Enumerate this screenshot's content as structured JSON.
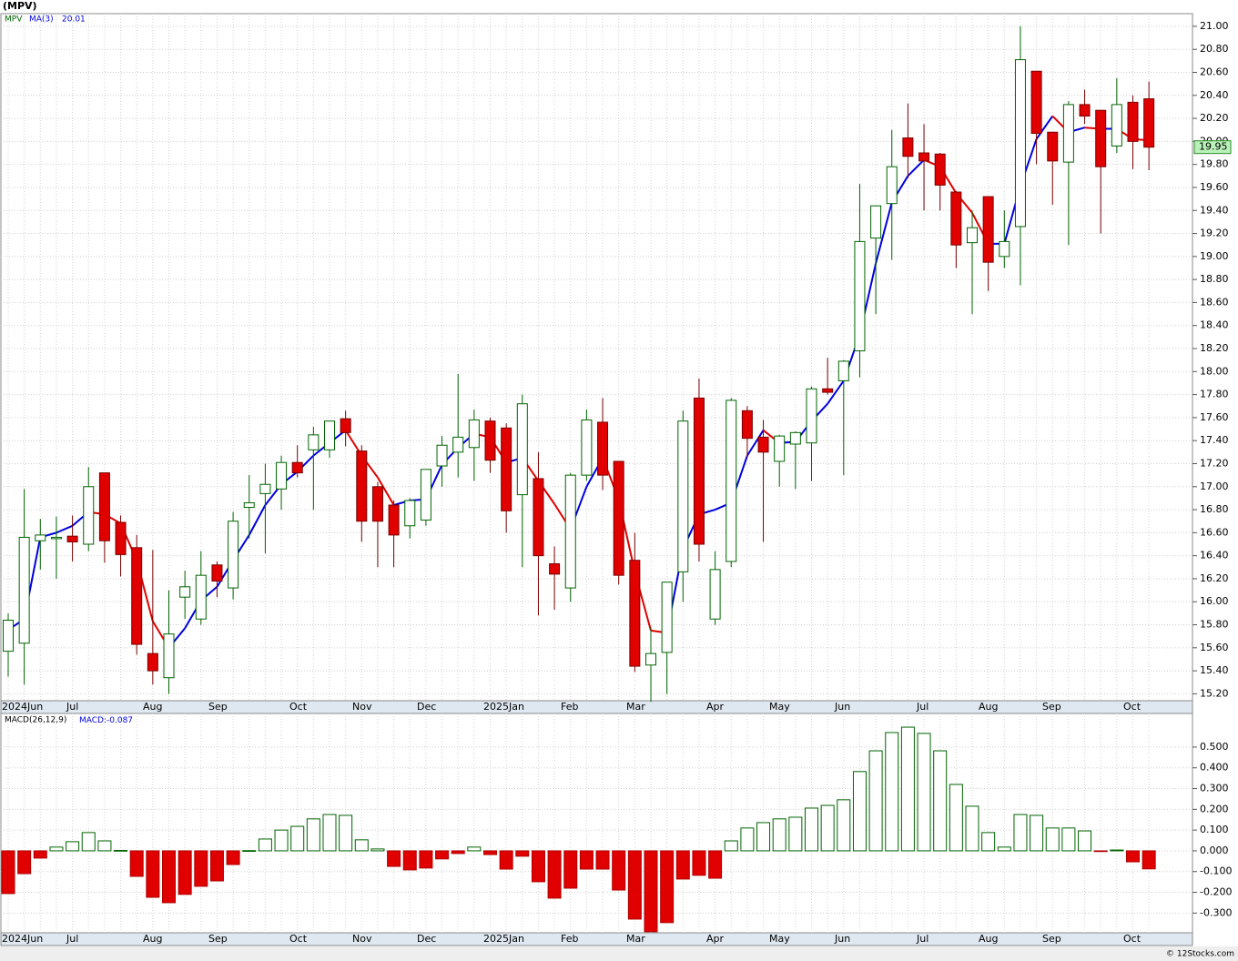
{
  "title": "(MPV)",
  "footer": "© 12Stocks.com",
  "chart_data": [
    {
      "type": "candlestick",
      "symbol": "MPV",
      "color_up": "#006400",
      "color_down": "#e00000",
      "open": [
        15.57,
        15.64,
        16.53,
        16.55,
        16.57,
        16.5,
        17.12,
        16.69,
        16.47,
        15.55,
        15.34,
        16.04,
        15.85,
        16.32,
        16.12,
        16.82,
        16.94,
        16.98,
        17.21,
        17.32,
        17.32,
        17.59,
        17.31,
        17.0,
        16.84,
        16.66,
        16.71,
        17.18,
        17.3,
        17.34,
        17.57,
        17.51,
        16.93,
        17.07,
        16.33,
        16.12,
        17.1,
        17.56,
        17.22,
        16.36,
        15.45,
        15.56,
        16.26,
        17.77,
        15.85,
        16.35,
        17.66,
        17.43,
        17.22,
        17.37,
        17.38,
        17.85,
        17.92,
        18.18,
        19.16,
        19.46,
        20.03,
        19.9,
        19.89,
        19.56,
        19.12,
        19.52,
        19.0,
        19.26,
        20.61,
        20.08,
        19.82,
        20.32,
        20.27,
        19.96,
        20.34,
        20.37
      ],
      "high": [
        15.9,
        16.98,
        16.72,
        16.74,
        16.75,
        17.17,
        17.12,
        16.75,
        16.58,
        16.45,
        16.1,
        16.27,
        16.44,
        16.35,
        16.78,
        17.1,
        17.2,
        17.27,
        17.36,
        17.52,
        17.57,
        17.66,
        17.36,
        17.04,
        16.88,
        16.9,
        17.15,
        17.44,
        17.98,
        17.67,
        17.6,
        17.55,
        17.8,
        17.3,
        16.48,
        17.12,
        17.67,
        17.77,
        17.22,
        16.6,
        15.78,
        16.17,
        17.66,
        17.94,
        16.44,
        17.77,
        17.7,
        17.58,
        17.45,
        17.48,
        17.87,
        18.12,
        18.1,
        19.63,
        19.44,
        20.1,
        20.33,
        20.15,
        19.9,
        19.57,
        19.4,
        19.52,
        19.4,
        21.0,
        20.61,
        20.08,
        20.35,
        20.45,
        20.27,
        20.55,
        20.4,
        20.52
      ],
      "low": [
        15.35,
        15.28,
        16.28,
        16.2,
        16.35,
        16.44,
        16.34,
        16.22,
        15.54,
        15.28,
        15.2,
        15.85,
        15.8,
        16.04,
        16.02,
        16.55,
        16.42,
        16.8,
        17.08,
        16.8,
        17.25,
        17.35,
        16.52,
        16.3,
        16.3,
        16.55,
        16.66,
        17.0,
        17.08,
        17.05,
        17.12,
        16.6,
        16.3,
        15.88,
        15.93,
        16.0,
        17.05,
        16.97,
        16.15,
        15.39,
        15.13,
        15.2,
        16.0,
        16.35,
        15.8,
        16.3,
        17.25,
        16.52,
        17.0,
        16.98,
        17.05,
        17.8,
        17.1,
        17.95,
        18.5,
        18.97,
        19.68,
        19.4,
        19.4,
        18.9,
        18.5,
        18.7,
        18.9,
        18.75,
        19.8,
        19.45,
        19.1,
        20.15,
        19.2,
        19.9,
        19.76,
        19.75
      ],
      "close": [
        15.84,
        16.56,
        16.58,
        16.56,
        16.52,
        17.0,
        16.53,
        16.41,
        15.63,
        15.4,
        15.72,
        16.13,
        16.23,
        16.18,
        16.7,
        16.86,
        17.02,
        17.21,
        17.12,
        17.45,
        17.57,
        17.47,
        16.7,
        16.7,
        16.58,
        16.88,
        17.15,
        17.36,
        17.43,
        17.58,
        17.23,
        16.79,
        17.72,
        16.4,
        16.24,
        17.1,
        17.58,
        17.1,
        16.23,
        15.44,
        15.55,
        16.17,
        17.57,
        16.5,
        16.28,
        17.75,
        17.42,
        17.3,
        17.44,
        17.47,
        17.85,
        17.82,
        18.09,
        19.13,
        19.44,
        19.78,
        19.87,
        19.83,
        19.62,
        19.1,
        19.25,
        18.95,
        19.13,
        20.71,
        20.07,
        19.83,
        20.32,
        20.22,
        19.78,
        20.32,
        20.0,
        19.95
      ],
      "ma": {
        "name": "MA(3)",
        "color_up": "#0000dd",
        "color_down": "#e00000",
        "values": [
          15.755,
          15.85,
          16.56,
          16.6,
          16.66,
          16.78,
          16.76,
          16.68,
          16.36,
          15.83,
          15.6,
          15.77,
          16.01,
          16.13,
          16.36,
          16.58,
          16.84,
          17.02,
          17.13,
          17.27,
          17.38,
          17.49,
          17.27,
          17.08,
          16.84,
          16.88,
          16.89,
          17.19,
          17.34,
          17.46,
          17.43,
          17.21,
          17.25,
          17.05,
          16.85,
          16.63,
          17.0,
          17.25,
          16.89,
          16.26,
          15.75,
          15.73,
          16.46,
          16.76,
          16.8,
          16.86,
          17.27,
          17.49,
          17.38,
          17.39,
          17.57,
          17.72,
          17.92,
          18.32,
          18.94,
          19.47,
          19.7,
          19.84,
          19.78,
          19.55,
          19.38,
          19.11,
          19.11,
          19.61,
          20.02,
          20.22,
          20.08,
          20.12,
          20.11,
          20.11,
          20.02,
          20.01
        ]
      },
      "ylim": [
        15.14,
        21.11
      ],
      "yticks": [
        {
          "value": 15.2,
          "label": "15.20"
        },
        {
          "value": 15.4,
          "label": "15.40"
        },
        {
          "value": 15.6,
          "label": "15.60"
        },
        {
          "value": 15.8,
          "label": "15.80"
        },
        {
          "value": 16,
          "label": "16.00"
        },
        {
          "value": 16.2,
          "label": "16.20"
        },
        {
          "value": 16.4,
          "label": "16.40"
        },
        {
          "value": 16.6,
          "label": "16.60"
        },
        {
          "value": 16.8,
          "label": "16.80"
        },
        {
          "value": 17,
          "label": "17.00"
        },
        {
          "value": 17.2,
          "label": "17.20"
        },
        {
          "value": 17.4,
          "label": "17.40"
        },
        {
          "value": 17.6,
          "label": "17.60"
        },
        {
          "value": 17.8,
          "label": "17.80"
        },
        {
          "value": 18,
          "label": "18.00"
        },
        {
          "value": 18.2,
          "label": "18.20"
        },
        {
          "value": 18.4,
          "label": "18.40"
        },
        {
          "value": 18.6,
          "label": "18.60"
        },
        {
          "value": 18.8,
          "label": "18.80"
        },
        {
          "value": 19,
          "label": "19.00"
        },
        {
          "value": 19.2,
          "label": "19.20"
        },
        {
          "value": 19.4,
          "label": "19.40"
        },
        {
          "value": 19.6,
          "label": "19.60"
        },
        {
          "value": 19.8,
          "label": "19.80"
        },
        {
          "value": 20,
          "label": "20.00"
        },
        {
          "value": 20.2,
          "label": "20.20"
        },
        {
          "value": 20.4,
          "label": "20.40"
        },
        {
          "value": 20.6,
          "label": "20.60"
        },
        {
          "value": 20.8,
          "label": "20.80"
        },
        {
          "value": 21,
          "label": "21.00"
        }
      ],
      "month_labels": [
        "2024Jun",
        "Jul",
        "Aug",
        "Sep",
        "Oct",
        "Nov",
        "Dec",
        "2025Jan",
        "Feb",
        "Mar",
        "Apr",
        "May",
        "Jun",
        "Jul",
        "Aug",
        "Sep",
        "Oct"
      ],
      "grid": true
    },
    {
      "type": "bar",
      "name": "MACD(26,12,9)",
      "value_prefix": "MACD:",
      "color_up": "#006400",
      "color_down": "#e00000",
      "values": [
        -0.206,
        -0.11,
        -0.035,
        0.018,
        0.044,
        0.088,
        0.048,
        0.002,
        -0.123,
        -0.224,
        -0.25,
        -0.21,
        -0.171,
        -0.145,
        -0.066,
        0.001,
        0.057,
        0.1,
        0.118,
        0.154,
        0.175,
        0.171,
        0.053,
        0.009,
        -0.075,
        -0.092,
        -0.083,
        -0.039,
        -0.013,
        0.018,
        -0.018,
        -0.088,
        -0.026,
        -0.149,
        -0.228,
        -0.18,
        -0.088,
        -0.088,
        -0.189,
        -0.329,
        -0.39,
        -0.346,
        -0.136,
        -0.118,
        -0.132,
        0.048,
        0.11,
        0.136,
        0.154,
        0.162,
        0.206,
        0.219,
        0.246,
        0.382,
        0.482,
        0.57,
        0.596,
        0.566,
        0.482,
        0.32,
        0.215,
        0.088,
        0.018,
        0.175,
        0.171,
        0.11,
        0.11,
        0.096,
        -0.001,
        0.004,
        -0.053,
        -0.087
      ],
      "ylim": [
        -0.395,
        0.662
      ],
      "yticks": [
        {
          "value": -0.3,
          "label": "-0.300"
        },
        {
          "value": -0.2,
          "label": "-0.200"
        },
        {
          "value": -0.1,
          "label": "-0.100"
        },
        {
          "value": 0,
          "label": "0.000"
        },
        {
          "value": 0.1,
          "label": "0.100"
        },
        {
          "value": 0.2,
          "label": "0.200"
        },
        {
          "value": 0.3,
          "label": "0.300"
        },
        {
          "value": 0.4,
          "label": "0.400"
        },
        {
          "value": 0.5,
          "label": "0.500"
        }
      ],
      "month_labels": [
        "2024Jun",
        "Jul",
        "Aug",
        "Sep",
        "Oct",
        "Nov",
        "Dec",
        "2025Jan",
        "Feb",
        "Mar",
        "Apr",
        "May",
        "Jun",
        "Jul",
        "Aug",
        "Sep",
        "Oct"
      ],
      "grid": true
    }
  ]
}
